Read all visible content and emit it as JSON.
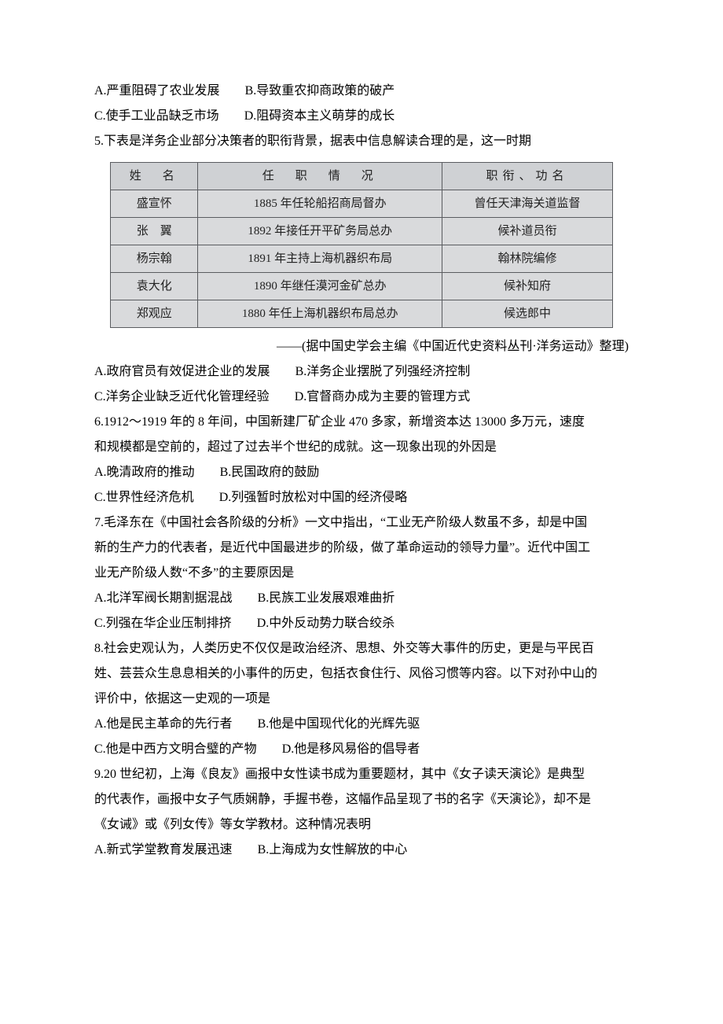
{
  "q4_opts": {
    "A": "A.严重阻碍了农业发展",
    "B": "B.导致重农抑商政策的破产",
    "C": "C.使手工业品缺乏市场",
    "D": "D.阻碍资本主义萌芽的成长"
  },
  "q5": {
    "stem": "5.下表是洋务企业部分决策者的职衔背景，据表中信息解读合理的是，这一时期",
    "table": {
      "headers": [
        "姓　名",
        "任　职　情　况",
        "职衔、功名"
      ],
      "rows": [
        [
          "盛宣怀",
          "1885 年任轮船招商局督办",
          "曾任天津海关道监督"
        ],
        [
          "张　翼",
          "1892 年接任开平矿务局总办",
          "候补道员衔"
        ],
        [
          "杨宗翰",
          "1891 年主持上海机器织布局",
          "翰林院编修"
        ],
        [
          "袁大化",
          "1890 年继任漠河金矿总办",
          "候补知府"
        ],
        [
          "郑观应",
          "1880 年任上海机器织布局总办",
          "候选郎中"
        ]
      ]
    },
    "source": "——(据中国史学会主编《中国近代史资料丛刊·洋务运动》整理)",
    "opts": {
      "A": "A.政府官员有效促进企业的发展",
      "B": "B.洋务企业摆脱了列强经济控制",
      "C": "C.洋务企业缺乏近代化管理经验",
      "D": "D.官督商办成为主要的管理方式"
    }
  },
  "q6": {
    "stem1": "6.1912～1919 年的 8 年间，中国新建厂矿企业 470 多家，新增资本达 13000 多万元，速度",
    "stem2": "和规模都是空前的，超过了过去半个世纪的成就。这一现象出现的外因是",
    "opts": {
      "A": "A.晚清政府的推动",
      "B": "B.民国政府的鼓励",
      "C": "C.世界性经济危机",
      "D": "D.列强暂时放松对中国的经济侵略"
    }
  },
  "q7": {
    "stem1": "7.毛泽东在《中国社会各阶级的分析》一文中指出，“工业无产阶级人数虽不多，却是中国",
    "stem2": "新的生产力的代表者，是近代中国最进步的阶级，做了革命运动的领导力量”。近代中国工",
    "stem3": "业无产阶级人数“不多”的主要原因是",
    "opts": {
      "A": "A.北洋军阀长期割据混战",
      "B": "B.民族工业发展艰难曲折",
      "C": "C.列强在华企业压制排挤",
      "D": "D.中外反动势力联合绞杀"
    }
  },
  "q8": {
    "stem1": "8.社会史观认为，人类历史不仅仅是政治经济、思想、外交等大事件的历史，更是与平民百",
    "stem2": "姓、芸芸众生息息相关的小事件的历史，包括衣食住行、风俗习惯等内容。以下对孙中山的",
    "stem3": "评价中，依据这一史观的一项是",
    "opts": {
      "A": "A.他是民主革命的先行者",
      "B": "B.他是中国现代化的光辉先驱",
      "C": "C.他是中西方文明合璧的产物",
      "D": "D.他是移风易俗的倡导者"
    }
  },
  "q9": {
    "stem1": "9.20 世纪初，上海《良友》画报中女性读书成为重要题材，其中《女子读天演论》是典型",
    "stem2": "的代表作，画报中女子气质娴静，手握书卷，这幅作品呈现了书的名字《天演论》，却不是",
    "stem3": "《女诫》或《列女传》等女学教材。这种情况表明",
    "opts": {
      "A": "A.新式学堂教育发展迅速",
      "B": "B.上海成为女性解放的中心"
    }
  }
}
